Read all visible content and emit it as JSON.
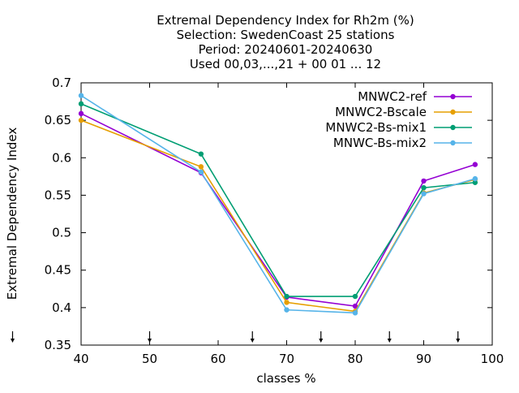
{
  "chart_data": {
    "type": "line",
    "title_lines": [
      "Extremal Dependency Index  for Rh2m (%)",
      "Selection: SwedenCoast     25 stations",
      "Period: 20240601-20240630",
      "Used 00,03,...,21 + 00 01 ... 12"
    ],
    "xlabel": "classes %",
    "ylabel": "Extremal Dependency Index",
    "xlim": [
      40,
      100
    ],
    "ylim": [
      0.35,
      0.7
    ],
    "xticks": [
      40,
      50,
      60,
      70,
      80,
      90,
      100
    ],
    "yticks": [
      0.35,
      0.4,
      0.45,
      0.5,
      0.55,
      0.6,
      0.65,
      0.7
    ],
    "ytick_labels": [
      "0.35",
      "0.4",
      "0.45",
      "0.5",
      "0.55",
      "0.6",
      "0.65",
      "0.7"
    ],
    "threshold_markers_x": [
      30,
      50,
      65,
      75,
      85,
      95
    ],
    "legend_position": "top-right",
    "grid": false,
    "series": [
      {
        "name": "MNWC2-ref",
        "color": "#9400d3",
        "marker": "circle",
        "x": [
          40,
          57.5,
          70,
          80,
          90,
          97.5
        ],
        "y": [
          0.659,
          0.58,
          0.414,
          0.402,
          0.569,
          0.591
        ]
      },
      {
        "name": "MNWC2-Bscale",
        "color": "#e69f00",
        "marker": "circle",
        "x": [
          40,
          57.5,
          70,
          80,
          90,
          97.5
        ],
        "y": [
          0.65,
          0.588,
          0.407,
          0.395,
          0.553,
          0.571
        ]
      },
      {
        "name": "MNWC2-Bs-mix1",
        "color": "#009e73",
        "marker": "circle",
        "x": [
          40,
          57.5,
          70,
          80,
          90,
          97.5
        ],
        "y": [
          0.672,
          0.605,
          0.415,
          0.415,
          0.56,
          0.567
        ]
      },
      {
        "name": "MNWC-Bs-mix2",
        "color": "#56b4e9",
        "marker": "circle",
        "x": [
          40,
          57.5,
          70,
          80,
          90,
          97.5
        ],
        "y": [
          0.683,
          0.581,
          0.397,
          0.393,
          0.552,
          0.572
        ]
      }
    ]
  }
}
